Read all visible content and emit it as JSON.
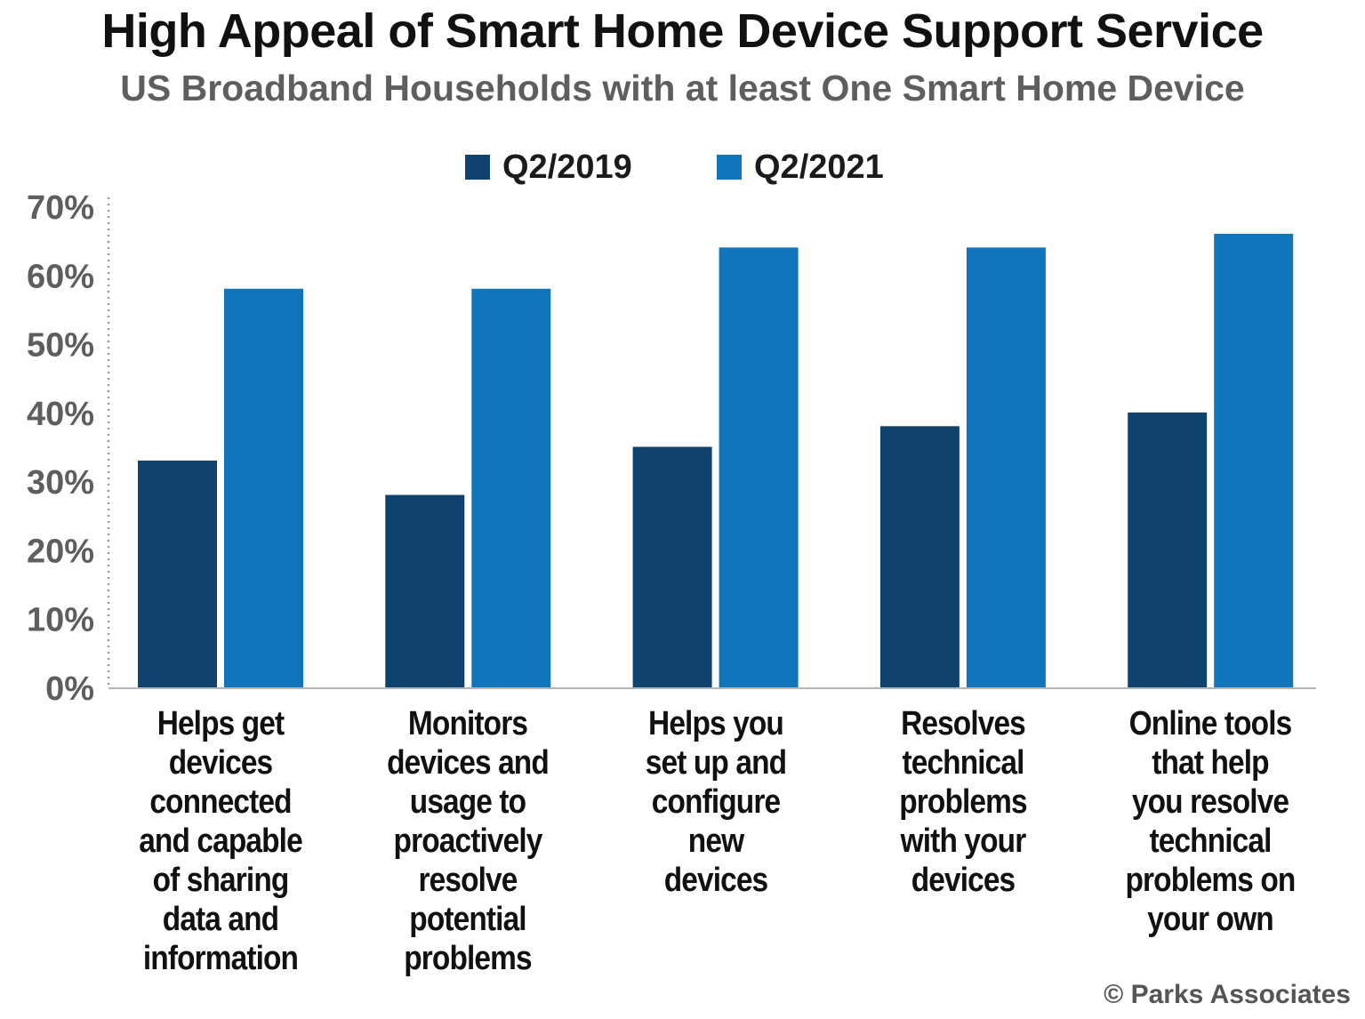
{
  "chart_data": {
    "type": "bar",
    "title": "High Appeal of Smart Home Device Support Service",
    "subtitle": "US Broadband Households with at least One Smart Home Device",
    "categories": [
      "Helps get devices connected and capable of sharing data and information",
      "Monitors devices and usage to proactively resolve potential problems",
      "Helps you set up and configure new devices",
      "Resolves technical problems with your devices",
      "Online tools that help you resolve technical problems on your own"
    ],
    "category_lines": [
      [
        "Helps get",
        "devices",
        "connected",
        "and capable",
        "of sharing",
        "data and",
        "information"
      ],
      [
        "Monitors",
        "devices and",
        "usage to",
        "proactively",
        "resolve",
        "potential",
        "problems"
      ],
      [
        "Helps you",
        "set up and",
        "configure",
        "new",
        "devices"
      ],
      [
        "Resolves",
        "technical",
        "problems",
        "with your",
        "devices"
      ],
      [
        "Online tools",
        "that help",
        "you resolve",
        "technical",
        "problems on",
        "your own"
      ]
    ],
    "series": [
      {
        "name": "Q2/2019",
        "color": "#0f426c",
        "values": [
          33,
          28,
          35,
          38,
          40
        ]
      },
      {
        "name": "Q2/2021",
        "color": "#1175bb",
        "values": [
          58,
          58,
          64,
          64,
          66
        ]
      }
    ],
    "ylim": [
      0,
      70
    ],
    "yticks": [
      "0%",
      "10%",
      "20%",
      "30%",
      "40%",
      "50%",
      "60%",
      "70%"
    ],
    "legend": "top-center",
    "grid": false
  },
  "footer": {
    "copyright": "© Parks Associates"
  }
}
